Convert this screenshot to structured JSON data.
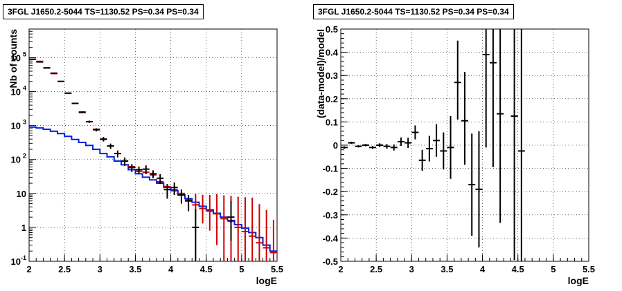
{
  "colors": {
    "data": "#000000",
    "model_sum": "#cc0000",
    "model_bkg": "#0022dd",
    "axis": "#000000",
    "grid": "#000000"
  },
  "chart_data": [
    {
      "type": "line",
      "title": "3FGL J1650.2-5044 TS=1130.52 PS=0.34 PS=0.34",
      "xlabel": "logE",
      "ylabel": "Nb of counts",
      "xlim": [
        2,
        5.5
      ],
      "ylim": [
        0.1,
        700000
      ],
      "yscale": "log",
      "grid": true,
      "xticks": [
        "2",
        "2.5",
        "3",
        "3.5",
        "4",
        "4.5",
        "5",
        "5.5"
      ],
      "yticks": [
        "10^-1",
        "1",
        "10",
        "10^2",
        "10^3",
        "10^4",
        "10^5"
      ],
      "series": [
        {
          "style": "crosses",
          "x": [
            2.05,
            2.15,
            2.25,
            2.35,
            2.45,
            2.55,
            2.65,
            2.75,
            2.85,
            2.95,
            3.05,
            3.15,
            3.25,
            3.35,
            3.45,
            3.55,
            3.65,
            3.75,
            3.85,
            3.95,
            4.05,
            4.15,
            4.25,
            4.35,
            4.45,
            4.55,
            4.65,
            4.75,
            4.85,
            4.95,
            5.05,
            5.15,
            5.25,
            5.35,
            5.45
          ],
          "y": [
            90000,
            75000,
            50000,
            35000,
            20000,
            9000,
            4500,
            2500,
            1300,
            750,
            400,
            250,
            150,
            90,
            58,
            50,
            52,
            38,
            28,
            13,
            15,
            9,
            6,
            1,
            0,
            0,
            0,
            0,
            2,
            0,
            0,
            0,
            0,
            0,
            0
          ],
          "err_lo": [
            1000,
            900,
            700,
            600,
            400,
            300,
            200,
            150,
            100,
            80,
            60,
            45,
            35,
            25,
            15,
            12,
            15,
            10,
            9,
            6,
            6,
            4,
            3,
            0.9,
            0,
            0,
            0,
            0,
            1.6,
            0,
            0,
            0,
            0,
            0,
            0
          ],
          "err_hi": [
            1000,
            900,
            700,
            600,
            400,
            300,
            200,
            150,
            100,
            80,
            60,
            45,
            35,
            25,
            15,
            12,
            15,
            10,
            9,
            6,
            6,
            4,
            3,
            2.4,
            0,
            0,
            0,
            0,
            4,
            0,
            0,
            0,
            0,
            0,
            0
          ]
        },
        {
          "style": "crosses",
          "x": [
            2.05,
            2.15,
            2.25,
            2.35,
            2.45,
            2.55,
            2.65,
            2.75,
            2.85,
            2.95,
            3.05,
            3.15,
            3.25,
            3.35,
            3.45,
            3.55,
            3.65,
            3.75,
            3.85,
            3.95,
            4.05,
            4.15,
            4.25,
            4.35,
            4.45,
            4.55,
            4.65,
            4.75,
            4.85,
            4.95,
            5.05,
            5.15,
            5.25,
            5.35,
            5.45
          ],
          "y": [
            90000,
            78000,
            50000,
            34000,
            20000,
            9000,
            4500,
            2400,
            1300,
            780,
            390,
            250,
            150,
            90,
            62,
            45,
            42,
            35,
            22,
            16,
            13,
            10,
            6.5,
            4.6,
            3.6,
            3,
            2.5,
            1.8,
            1.5,
            1,
            0.75,
            0.55,
            0.35,
            0.25,
            0.18
          ],
          "err_lo": [
            0,
            0,
            0,
            0,
            0,
            0,
            0,
            0,
            0,
            0,
            0,
            0,
            0,
            0,
            0,
            0,
            0,
            0,
            0,
            0,
            0,
            0,
            0,
            2.6,
            2.3,
            2.2,
            2.2,
            1.7,
            1.4,
            0.97,
            0.73,
            0.54,
            0.25,
            0.15,
            0.08
          ],
          "err_hi": [
            0,
            0,
            0,
            0,
            0,
            0,
            0,
            0,
            0,
            0,
            0,
            0,
            0,
            0,
            0,
            0,
            0,
            0,
            0,
            0,
            0,
            0,
            0,
            5,
            5.5,
            6,
            7,
            7,
            7,
            7,
            7,
            7,
            4.5,
            3,
            1.5
          ]
        },
        {
          "style": "step",
          "edges": [
            2,
            2.1,
            2.2,
            2.3,
            2.4,
            2.5,
            2.6,
            2.7,
            2.8,
            2.9,
            3,
            3.1,
            3.2,
            3.3,
            3.4,
            3.5,
            3.6,
            3.7,
            3.8,
            3.9,
            4,
            4.1,
            4.2,
            4.3,
            4.4,
            4.5,
            4.6,
            4.7,
            4.8,
            4.9,
            5,
            5.1,
            5.2,
            5.3,
            5.4,
            5.5
          ],
          "values": [
            900,
            850,
            780,
            680,
            580,
            480,
            390,
            320,
            260,
            200,
            150,
            120,
            90,
            70,
            50,
            38,
            30,
            25,
            20,
            15,
            12,
            9,
            7,
            5.5,
            4.2,
            3.3,
            2.6,
            2,
            1.6,
            1.2,
            0.95,
            0.7,
            0.5,
            0.3,
            0.2
          ]
        }
      ]
    },
    {
      "type": "line",
      "title": "3FGL J1650.2-5044 TS=1130.52 PS=0.34 PS=0.34",
      "xlabel": "logE",
      "ylabel": "(data-model)/model",
      "xlim": [
        2,
        5.5
      ],
      "ylim": [
        -0.5,
        0.5
      ],
      "grid": true,
      "xticks": [
        "2",
        "2.5",
        "3",
        "3.5",
        "4",
        "4.5",
        "5",
        "5.5"
      ],
      "yticks": [
        "-0.5",
        "-0.4",
        "-0.3",
        "-0.2",
        "-0.1",
        "0",
        "0.1",
        "0.2",
        "0.3",
        "0.4",
        "0.5"
      ],
      "series": [
        {
          "style": "crosses",
          "x": [
            2.05,
            2.15,
            2.25,
            2.35,
            2.45,
            2.55,
            2.65,
            2.75,
            2.85,
            2.95,
            3.05,
            3.15,
            3.25,
            3.35,
            3.45,
            3.55,
            3.65,
            3.75,
            3.85,
            3.95,
            4.05,
            4.15,
            4.25,
            4.45,
            4.55
          ],
          "y": [
            -0.01,
            0.01,
            -0.005,
            0,
            -0.01,
            0,
            -0.005,
            -0.01,
            0.015,
            0.01,
            0.055,
            -0.065,
            -0.015,
            0.02,
            -0.025,
            -0.01,
            0.27,
            0.105,
            -0.17,
            -0.19,
            0.39,
            0.355,
            0.135,
            0.125,
            -0.025
          ],
          "err_lo": [
            0.005,
            0.005,
            0.005,
            0.005,
            0.006,
            0.008,
            0.01,
            0.013,
            0.018,
            0.022,
            0.03,
            0.045,
            0.055,
            0.07,
            0.08,
            0.135,
            0.16,
            0.19,
            0.22,
            0.25,
            0.4,
            0.45,
            0.47,
            0.62,
            0.62
          ],
          "err_hi": [
            0.005,
            0.005,
            0.005,
            0.005,
            0.006,
            0.008,
            0.01,
            0.013,
            0.018,
            0.022,
            0.03,
            0.045,
            0.055,
            0.07,
            0.08,
            0.135,
            0.18,
            0.21,
            0.22,
            0.25,
            0.4,
            0.45,
            0.47,
            0.62,
            0.62
          ]
        }
      ]
    }
  ]
}
